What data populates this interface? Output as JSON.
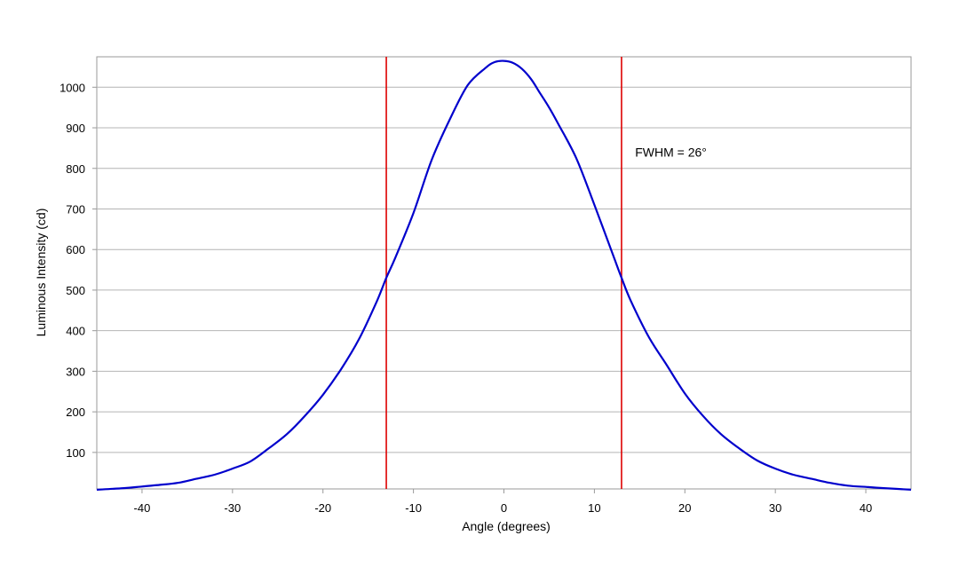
{
  "chart_data": {
    "type": "line",
    "xlabel": "Angle (degrees)",
    "ylabel": "Luminous Intensity (cd)",
    "xlim": [
      -45,
      45
    ],
    "ylim": [
      10,
      1075
    ],
    "x_ticks": [
      -40,
      -30,
      -20,
      -10,
      0,
      10,
      20,
      30,
      40
    ],
    "y_ticks": [
      100,
      200,
      300,
      400,
      500,
      600,
      700,
      800,
      900,
      1000
    ],
    "grid": "horizontal",
    "series": [
      {
        "color": "#0000cc",
        "x": [
          -45,
          -42,
          -40,
          -38,
          -36,
          -34,
          -32,
          -30,
          -28,
          -26,
          -24,
          -22,
          -20,
          -18,
          -16,
          -14,
          -13,
          -12,
          -10,
          -8,
          -6,
          -4,
          -2,
          -1,
          0,
          1,
          2,
          3,
          4,
          5,
          6,
          8,
          10,
          12,
          13,
          14,
          16,
          18,
          20,
          22,
          24,
          26,
          28,
          30,
          32,
          34,
          36,
          38,
          40,
          42,
          45
        ],
        "y": [
          8,
          12,
          16,
          20,
          25,
          35,
          45,
          60,
          78,
          110,
          145,
          190,
          242,
          305,
          380,
          475,
          530,
          580,
          690,
          820,
          920,
          1005,
          1048,
          1062,
          1065,
          1060,
          1045,
          1020,
          985,
          950,
          910,
          825,
          710,
          590,
          530,
          475,
          385,
          315,
          245,
          190,
          145,
          110,
          80,
          60,
          45,
          35,
          25,
          18,
          15,
          12,
          8
        ]
      }
    ],
    "vlines": [
      {
        "x": -13,
        "color": "#dd0000"
      },
      {
        "x": 13,
        "color": "#dd0000"
      }
    ],
    "annotations": [
      {
        "text": "FWHM = 26°",
        "x": 14.5,
        "y": 840
      }
    ]
  }
}
